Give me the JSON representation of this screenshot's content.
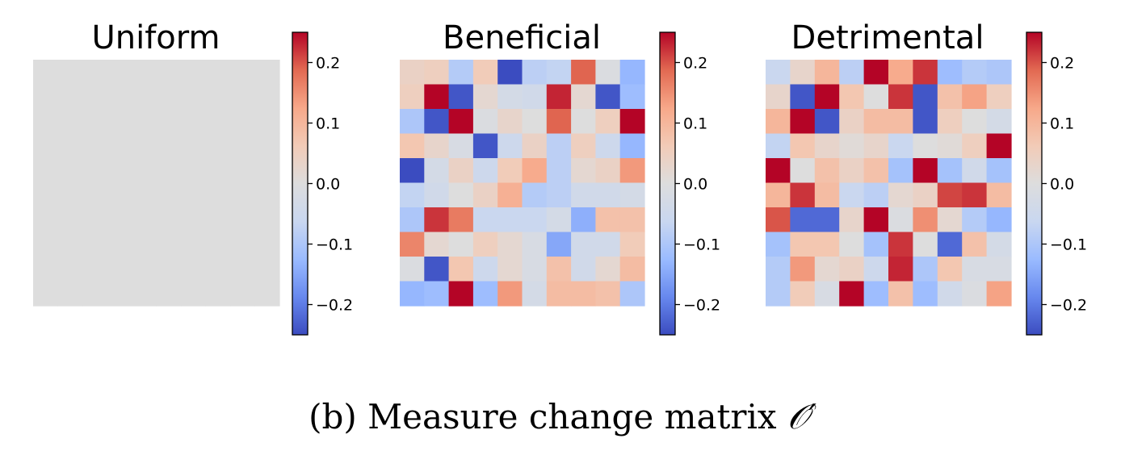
{
  "caption": {
    "text": "(b) Measure change matrix ",
    "symbol": "𝒪′"
  },
  "colormap": {
    "name": "coolwarm",
    "stops": [
      "#3b4cc0",
      "#6788ee",
      "#9abbff",
      "#c9d7f0",
      "#dddddd",
      "#f2cbb7",
      "#f7a889",
      "#e26952",
      "#b40426"
    ]
  },
  "chart_data": [
    {
      "type": "heatmap",
      "title": "Uniform",
      "rows": 10,
      "cols": 10,
      "values": [
        [
          0,
          0,
          0,
          0,
          0,
          0,
          0,
          0,
          0,
          0
        ],
        [
          0,
          0,
          0,
          0,
          0,
          0,
          0,
          0,
          0,
          0
        ],
        [
          0,
          0,
          0,
          0,
          0,
          0,
          0,
          0,
          0,
          0
        ],
        [
          0,
          0,
          0,
          0,
          0,
          0,
          0,
          0,
          0,
          0
        ],
        [
          0,
          0,
          0,
          0,
          0,
          0,
          0,
          0,
          0,
          0
        ],
        [
          0,
          0,
          0,
          0,
          0,
          0,
          0,
          0,
          0,
          0
        ],
        [
          0,
          0,
          0,
          0,
          0,
          0,
          0,
          0,
          0,
          0
        ],
        [
          0,
          0,
          0,
          0,
          0,
          0,
          0,
          0,
          0,
          0
        ],
        [
          0,
          0,
          0,
          0,
          0,
          0,
          0,
          0,
          0,
          0
        ],
        [
          0,
          0,
          0,
          0,
          0,
          0,
          0,
          0,
          0,
          0
        ]
      ],
      "colorbar": {
        "vmin": -0.25,
        "vmax": 0.25,
        "ticks": [
          0.2,
          0.1,
          0.0,
          -0.1,
          -0.2
        ],
        "tick_labels": [
          "0.2",
          "0.1",
          "0.0",
          "−0.1",
          "−0.2"
        ]
      }
    },
    {
      "type": "heatmap",
      "title": "Beneficial",
      "rows": 10,
      "cols": 10,
      "values": [
        [
          0.04,
          0.05,
          -0.09,
          0.06,
          -0.25,
          -0.08,
          -0.07,
          0.19,
          -0.01,
          -0.13
        ],
        [
          0.05,
          0.25,
          -0.24,
          0.02,
          -0.03,
          -0.04,
          0.23,
          0.02,
          -0.24,
          -0.12
        ],
        [
          -0.1,
          -0.24,
          0.25,
          -0.01,
          0.03,
          0.0,
          0.19,
          0.0,
          0.05,
          0.25
        ],
        [
          0.07,
          0.03,
          -0.02,
          -0.24,
          -0.05,
          0.04,
          -0.08,
          0.05,
          -0.05,
          -0.13
        ],
        [
          -0.25,
          -0.03,
          0.04,
          -0.05,
          0.06,
          0.12,
          -0.08,
          0.02,
          0.04,
          0.14
        ],
        [
          -0.07,
          -0.04,
          0.0,
          0.04,
          0.11,
          -0.09,
          -0.08,
          -0.04,
          -0.04,
          -0.03
        ],
        [
          -0.1,
          0.22,
          0.17,
          -0.06,
          -0.06,
          -0.06,
          -0.03,
          -0.14,
          0.08,
          0.08
        ],
        [
          0.16,
          0.02,
          0.0,
          0.05,
          0.02,
          -0.02,
          -0.15,
          -0.04,
          -0.04,
          0.06
        ],
        [
          -0.01,
          -0.24,
          0.07,
          -0.05,
          0.02,
          -0.02,
          0.08,
          -0.04,
          0.02,
          0.09
        ],
        [
          -0.13,
          -0.12,
          0.25,
          -0.12,
          0.14,
          -0.03,
          0.09,
          0.09,
          0.08,
          -0.1
        ]
      ],
      "colorbar": {
        "vmin": -0.25,
        "vmax": 0.25,
        "ticks": [
          0.2,
          0.1,
          0.0,
          -0.1,
          -0.2
        ],
        "tick_labels": [
          "0.2",
          "0.1",
          "0.0",
          "−0.1",
          "−0.2"
        ]
      }
    },
    {
      "type": "heatmap",
      "title": "Detrimental",
      "rows": 10,
      "cols": 10,
      "values": [
        [
          -0.06,
          0.03,
          0.1,
          -0.08,
          0.25,
          0.12,
          0.22,
          -0.12,
          -0.09,
          -0.1
        ],
        [
          0.03,
          -0.24,
          0.25,
          0.07,
          0.0,
          0.22,
          -0.24,
          0.08,
          0.13,
          0.05
        ],
        [
          0.1,
          0.25,
          -0.24,
          0.04,
          0.09,
          0.09,
          -0.24,
          0.05,
          0.0,
          -0.03
        ],
        [
          -0.07,
          0.07,
          0.03,
          0.01,
          0.03,
          -0.06,
          0.0,
          0.01,
          0.05,
          0.25
        ],
        [
          0.25,
          0.0,
          0.08,
          0.04,
          0.08,
          -0.11,
          0.25,
          -0.11,
          -0.04,
          -0.11
        ],
        [
          0.1,
          0.22,
          0.09,
          -0.06,
          -0.08,
          0.02,
          0.04,
          0.21,
          0.22,
          0.09
        ],
        [
          0.2,
          -0.22,
          -0.22,
          0.03,
          0.25,
          -0.01,
          0.15,
          0.02,
          -0.09,
          -0.13
        ],
        [
          -0.11,
          0.07,
          0.07,
          0.0,
          -0.11,
          0.22,
          0.0,
          -0.22,
          0.08,
          -0.03
        ],
        [
          -0.09,
          0.14,
          0.02,
          0.04,
          -0.05,
          0.23,
          -0.1,
          0.07,
          -0.02,
          -0.02
        ],
        [
          -0.09,
          0.06,
          -0.02,
          0.25,
          -0.12,
          0.08,
          -0.12,
          -0.04,
          -0.01,
          0.13
        ]
      ],
      "colorbar": {
        "vmin": -0.25,
        "vmax": 0.25,
        "ticks": [
          0.2,
          0.1,
          0.0,
          -0.1,
          -0.2
        ],
        "tick_labels": [
          "0.2",
          "0.1",
          "0.0",
          "−0.1",
          "−0.2"
        ]
      }
    }
  ]
}
